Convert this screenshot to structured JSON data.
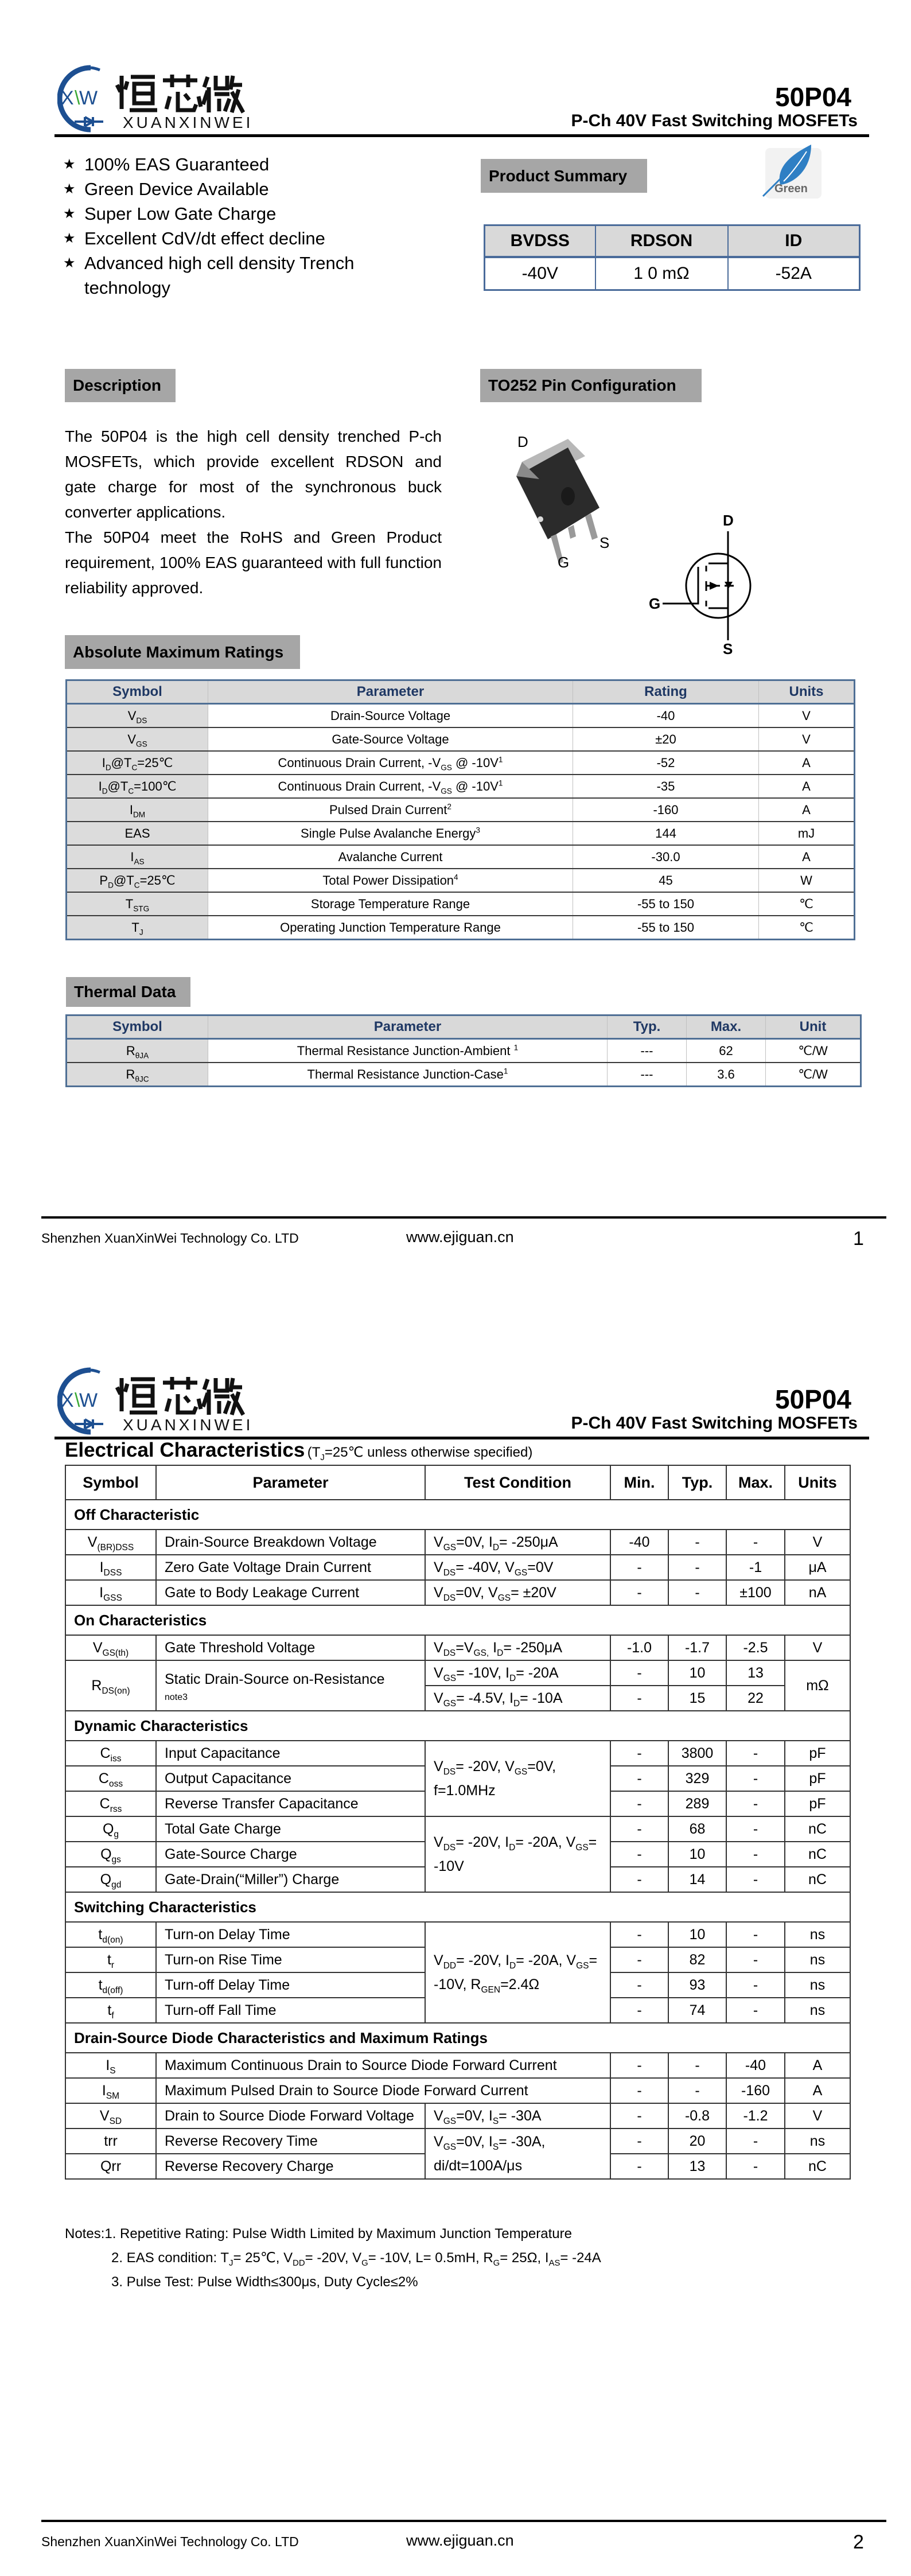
{
  "brand": {
    "logo_cn": "烜芯微",
    "logo_en": "XUANXINWEI",
    "logo_mark": "XW",
    "blue": "#1d4f91",
    "green": "#3aa935"
  },
  "header": {
    "part": "50P04",
    "subtitle": "P-Ch 40V Fast Switching MOSFETs"
  },
  "features": [
    "100% EAS Guaranteed",
    "Green Device Available",
    "Super Low Gate Charge",
    "Excellent CdV/dt effect decline",
    "Advanced high cell density Trench technology"
  ],
  "feature_bullet": "★",
  "product_summary": {
    "label": "Product Summary",
    "green_badge": "Green",
    "headers": [
      "BVDSS",
      "RDSON",
      "ID"
    ],
    "values": [
      "-40V",
      "1 0 mΩ",
      "-52A"
    ]
  },
  "description": {
    "label": "Description",
    "paragraphs": [
      "The 50P04 is the high cell density trenched P-ch MOSFETs, which provide excellent RDSON and gate charge for most of the synchronous buck converter applications.",
      "The 50P04 meet the RoHS and Green Product requirement, 100% EAS guaranteed with full function reliability approved."
    ]
  },
  "pin_config": {
    "label": "TO252 Pin Configuration",
    "pins": {
      "d": "D",
      "g": "G",
      "s": "S"
    }
  },
  "abs_max": {
    "label": "Absolute Maximum Ratings",
    "headers": [
      "Symbol",
      "Parameter",
      "Rating",
      "Units"
    ],
    "rows": [
      [
        [
          "V",
          {
            "sub": "DS"
          }
        ],
        "Drain-Source Voltage",
        "-40",
        "V"
      ],
      [
        [
          "V",
          {
            "sub": "GS"
          }
        ],
        "Gate-Source Voltage",
        "±20",
        "V"
      ],
      [
        [
          "I",
          {
            "sub": "D"
          },
          "@T",
          {
            "sub": "C"
          },
          "=25℃"
        ],
        [
          "Continuous Drain Current, -V",
          {
            "sub": "GS"
          },
          " @ -10V",
          {
            "sup": "1"
          }
        ],
        "-52",
        "A"
      ],
      [
        [
          "I",
          {
            "sub": "D"
          },
          "@T",
          {
            "sub": "C"
          },
          "=100℃"
        ],
        [
          "Continuous Drain Current, -V",
          {
            "sub": "GS"
          },
          " @ -10V",
          {
            "sup": "1"
          }
        ],
        "-35",
        "A"
      ],
      [
        [
          "I",
          {
            "sub": "DM"
          }
        ],
        [
          "Pulsed Drain Current",
          {
            "sup": "2"
          }
        ],
        "-160",
        "A"
      ],
      [
        "EAS",
        [
          "Single Pulse Avalanche Energy",
          {
            "sup": "3"
          }
        ],
        "144",
        "mJ"
      ],
      [
        [
          "I",
          {
            "sub": "AS"
          }
        ],
        "Avalanche Current",
        "-30.0",
        "A"
      ],
      [
        [
          "P",
          {
            "sub": "D"
          },
          "@T",
          {
            "sub": "C"
          },
          "=25℃"
        ],
        [
          "Total Power Dissipation",
          {
            "sup": "4"
          }
        ],
        "45",
        "W"
      ],
      [
        [
          "T",
          {
            "sub": "STG"
          }
        ],
        "Storage Temperature Range",
        "-55 to 150",
        "℃"
      ],
      [
        [
          "T",
          {
            "sub": "J"
          }
        ],
        "Operating Junction Temperature Range",
        "-55 to 150",
        "℃"
      ]
    ]
  },
  "thermal": {
    "label": "Thermal Data",
    "headers": [
      "Symbol",
      "Parameter",
      "Typ.",
      "Max.",
      "Unit"
    ],
    "rows": [
      [
        [
          "R",
          {
            "sub": "θJA"
          }
        ],
        [
          "Thermal Resistance Junction-Ambient ",
          {
            "sup": "1"
          }
        ],
        "---",
        "62",
        "℃/W"
      ],
      [
        [
          "R",
          {
            "sub": "θJC"
          }
        ],
        [
          "Thermal Resistance Junction-Case",
          {
            "sup": "1"
          }
        ],
        "---",
        "3.6",
        "℃/W"
      ]
    ]
  },
  "footer": {
    "company": "Shenzhen XuanXinWei Technology Co. LTD",
    "website": "www.ejiguan.cn",
    "pages": [
      "1",
      "2"
    ]
  },
  "electrical": {
    "title": "Electrical Characteristics",
    "title_note": [
      "(T",
      {
        "sub": "J"
      },
      "=25℃ unless otherwise specified)"
    ],
    "headers": [
      "Symbol",
      "Parameter",
      "Test Condition",
      "Min.",
      "Typ.",
      "Max.",
      "Units"
    ],
    "rows": [
      {
        "section": "Off Characteristic"
      },
      {
        "sym": [
          "V",
          {
            "sub": "(BR)DSS"
          }
        ],
        "param": "Drain-Source Breakdown Voltage",
        "cond": [
          "V",
          {
            "sub": "GS"
          },
          "=0V, I",
          {
            "sub": "D"
          },
          "= -250μA"
        ],
        "min": "-40",
        "typ": "-",
        "max": "-",
        "unit": "V"
      },
      {
        "sym": [
          "I",
          {
            "sub": "DSS"
          }
        ],
        "param": "Zero Gate Voltage Drain Current",
        "cond": [
          "V",
          {
            "sub": "DS"
          },
          "= -40V, V",
          {
            "sub": "GS"
          },
          "=0V"
        ],
        "min": "-",
        "typ": "-",
        "max": "-1",
        "unit": "μA"
      },
      {
        "sym": [
          "I",
          {
            "sub": "GSS"
          }
        ],
        "param": "Gate to Body Leakage Current",
        "cond": [
          "V",
          {
            "sub": "DS"
          },
          "=0V, V",
          {
            "sub": "GS"
          },
          "= ±20V"
        ],
        "min": "-",
        "typ": "-",
        "max": "±100",
        "unit": "nA"
      },
      {
        "section": "On Characteristics"
      },
      {
        "sym": [
          "V",
          {
            "sub": "GS(th)"
          }
        ],
        "param": "Gate Threshold Voltage",
        "cond": [
          "V",
          {
            "sub": "DS"
          },
          "=V",
          {
            "sub": "GS,"
          },
          " I",
          {
            "sub": "D"
          },
          "= -250μA"
        ],
        "min": "-1.0",
        "typ": "-1.7",
        "max": "-2.5",
        "unit": "V"
      },
      {
        "sym": [
          "R",
          {
            "sub": "DS(on)"
          }
        ],
        "param": [
          "Static Drain-Source on-Resistance",
          {
            "note": "note3"
          }
        ],
        "cond": [
          "V",
          {
            "sub": "GS"
          },
          "= -10V, I",
          {
            "sub": "D"
          },
          "= -20A"
        ],
        "min": "-",
        "typ": "10",
        "max": "13",
        "unit": "mΩ"
      },
      {
        "sym": null,
        "param": null,
        "cond": [
          "V",
          {
            "sub": "GS"
          },
          "= -4.5V, I",
          {
            "sub": "D"
          },
          "= -10A"
        ],
        "min": "-",
        "typ": "15",
        "max": "22",
        "unit": null
      },
      {
        "section": "Dynamic Characteristics"
      },
      {
        "sym": [
          "C",
          {
            "sub": "iss"
          }
        ],
        "param": "Input Capacitance",
        "cond": [
          "V",
          {
            "sub": "DS"
          },
          "= -20V, V",
          {
            "sub": "GS"
          },
          "=0V, f=1.0MHz"
        ],
        "min": "-",
        "typ": "3800",
        "max": "-",
        "unit": "pF"
      },
      {
        "sym": [
          "C",
          {
            "sub": "oss"
          }
        ],
        "param": "Output Capacitance",
        "cond": null,
        "min": "-",
        "typ": "329",
        "max": "-",
        "unit": "pF"
      },
      {
        "sym": [
          "C",
          {
            "sub": "rss"
          }
        ],
        "param": "Reverse Transfer Capacitance",
        "cond": null,
        "min": "-",
        "typ": "289",
        "max": "-",
        "unit": "pF"
      },
      {
        "sym": [
          "Q",
          {
            "sub": "g"
          }
        ],
        "param": "Total Gate Charge",
        "cond": [
          "V",
          {
            "sub": "DS"
          },
          "= -20V, I",
          {
            "sub": "D"
          },
          "= -20A, V",
          {
            "sub": "GS"
          },
          "= -10V"
        ],
        "min": "-",
        "typ": "68",
        "max": "-",
        "unit": "nC"
      },
      {
        "sym": [
          "Q",
          {
            "sub": "gs"
          }
        ],
        "param": "Gate-Source Charge",
        "cond": null,
        "min": "-",
        "typ": "10",
        "max": "-",
        "unit": "nC"
      },
      {
        "sym": [
          "Q",
          {
            "sub": "gd"
          }
        ],
        "param": "Gate-Drain(“Miller”) Charge",
        "cond": null,
        "min": "-",
        "typ": "14",
        "max": "-",
        "unit": "nC"
      },
      {
        "section": "Switching Characteristics"
      },
      {
        "sym": [
          "t",
          {
            "sub": "d(on)"
          }
        ],
        "param": "Turn-on Delay Time",
        "cond": [
          "V",
          {
            "sub": "DD"
          },
          "= -20V, I",
          {
            "sub": "D"
          },
          "= -20A, V",
          {
            "sub": "GS"
          },
          "= -10V, R",
          {
            "sub": "GEN"
          },
          "=2.4Ω"
        ],
        "min": "-",
        "typ": "10",
        "max": "-",
        "unit": "ns"
      },
      {
        "sym": [
          "t",
          {
            "sub": "r"
          }
        ],
        "param": "Turn-on Rise Time",
        "cond": null,
        "min": "-",
        "typ": "82",
        "max": "-",
        "unit": "ns"
      },
      {
        "sym": [
          "t",
          {
            "sub": "d(off)"
          }
        ],
        "param": "Turn-off Delay Time",
        "cond": null,
        "min": "-",
        "typ": "93",
        "max": "-",
        "unit": "ns"
      },
      {
        "sym": [
          "t",
          {
            "sub": "f"
          }
        ],
        "param": "Turn-off Fall Time",
        "cond": null,
        "min": "-",
        "typ": "74",
        "max": "-",
        "unit": "ns"
      },
      {
        "section": "Drain-Source Diode Characteristics and Maximum Ratings"
      },
      {
        "sym": [
          "I",
          {
            "sub": "S"
          }
        ],
        "param": "Maximum Continuous Drain to Source Diode Forward Current",
        "min": "-",
        "typ": "-",
        "max": "-40",
        "unit": "A"
      },
      {
        "sym": [
          "I",
          {
            "sub": "SM"
          }
        ],
        "param": "Maximum Pulsed Drain to Source Diode Forward Current",
        "min": "-",
        "typ": "-",
        "max": "-160",
        "unit": "A"
      },
      {
        "sym": [
          "V",
          {
            "sub": "SD"
          }
        ],
        "param": "Drain to Source Diode Forward Voltage",
        "cond": [
          "V",
          {
            "sub": "GS"
          },
          "=0V, I",
          {
            "sub": "S"
          },
          "= -30A"
        ],
        "min": "-",
        "typ": "-0.8",
        "max": "-1.2",
        "unit": "V"
      },
      {
        "sym": "trr",
        "param": "Reverse Recovery Time",
        "cond": [
          "V",
          {
            "sub": "GS"
          },
          "=0V, I",
          {
            "sub": "S"
          },
          "= -30A, di/dt=100A/μs"
        ],
        "min": "-",
        "typ": "20",
        "max": "-",
        "unit": "ns"
      },
      {
        "sym": "Qrr",
        "param": "Reverse Recovery Charge",
        "cond": null,
        "min": "-",
        "typ": "13",
        "max": "-",
        "unit": "nC"
      }
    ],
    "notes": [
      "Notes:1. Repetitive Rating: Pulse Width Limited by Maximum Junction Temperature",
      [
        "2. EAS condition: T",
        {
          "sub": "J"
        },
        "= 25℃, V",
        {
          "sub": "DD"
        },
        "= -20V, V",
        {
          "sub": "G"
        },
        "= -10V, L= 0.5mH, R",
        {
          "sub": "G"
        },
        "= 25Ω, I",
        {
          "sub": "AS"
        },
        "= -24A"
      ],
      "3. Pulse Test: Pulse Width≤300μs, Duty Cycle≤2%"
    ]
  }
}
